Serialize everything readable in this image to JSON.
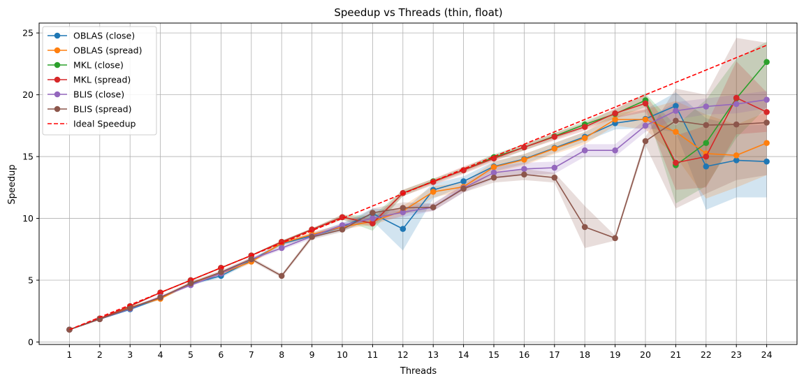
{
  "chart_data": {
    "type": "line",
    "title": "Speedup vs Threads (thin, float)",
    "xlabel": "Threads",
    "ylabel": "Speedup",
    "x": [
      1,
      2,
      3,
      4,
      5,
      6,
      7,
      8,
      9,
      10,
      11,
      12,
      13,
      14,
      15,
      16,
      17,
      18,
      19,
      20,
      21,
      22,
      23,
      24
    ],
    "x_ticks": [
      "1",
      "2",
      "3",
      "4",
      "5",
      "6",
      "7",
      "8",
      "9",
      "10",
      "11",
      "12",
      "13",
      "14",
      "15",
      "16",
      "17",
      "18",
      "19",
      "20",
      "21",
      "22",
      "23",
      "24"
    ],
    "y_ticks": [
      0,
      5,
      10,
      15,
      20,
      25
    ],
    "y_tick_labels": [
      "0",
      "5",
      "10",
      "15",
      "20",
      "25"
    ],
    "xlim": [
      0,
      25
    ],
    "ylim": [
      -0.2,
      25.8
    ],
    "grid": true,
    "legend_position": "top-left",
    "series": [
      {
        "name": "OBLAS (close)",
        "color": "#1f77b4",
        "values": [
          1.0,
          1.85,
          2.65,
          3.55,
          4.7,
          5.35,
          6.6,
          7.95,
          8.6,
          9.3,
          10.4,
          9.15,
          12.3,
          13.0,
          14.2,
          14.8,
          15.7,
          16.6,
          17.7,
          18.05,
          19.1,
          14.2,
          14.7,
          14.6
        ],
        "lower": [
          1.0,
          1.8,
          2.55,
          3.45,
          4.6,
          5.2,
          6.45,
          7.8,
          8.4,
          9.0,
          9.8,
          7.4,
          11.6,
          12.6,
          13.8,
          14.4,
          15.3,
          16.2,
          17.2,
          17.3,
          17.0,
          10.7,
          11.7,
          11.7
        ],
        "upper": [
          1.0,
          1.9,
          2.75,
          3.65,
          4.8,
          5.5,
          6.75,
          8.1,
          8.8,
          9.6,
          10.8,
          10.6,
          12.8,
          13.4,
          14.6,
          15.2,
          16.1,
          17.0,
          18.2,
          18.8,
          20.2,
          18.1,
          17.5,
          17.6
        ]
      },
      {
        "name": "OBLAS (spread)",
        "color": "#ff7f0e",
        "values": [
          1.0,
          1.85,
          2.8,
          3.5,
          4.75,
          5.55,
          6.5,
          8.0,
          8.7,
          9.3,
          9.75,
          10.6,
          12.15,
          12.55,
          14.15,
          14.75,
          15.65,
          16.5,
          18.0,
          18.0,
          17.0,
          15.25,
          15.1,
          16.1
        ],
        "lower": [
          1.0,
          1.8,
          2.7,
          3.4,
          4.65,
          5.4,
          6.35,
          7.85,
          8.5,
          9.1,
          9.5,
          10.2,
          11.7,
          12.2,
          13.7,
          14.3,
          15.2,
          16.0,
          17.5,
          17.2,
          15.0,
          11.6,
          12.5,
          13.5
        ],
        "upper": [
          1.0,
          1.9,
          2.9,
          3.6,
          4.85,
          5.7,
          6.65,
          8.15,
          8.9,
          9.5,
          10.0,
          11.0,
          12.6,
          12.9,
          14.6,
          15.2,
          16.1,
          17.0,
          18.5,
          18.8,
          19.5,
          18.4,
          17.6,
          18.6
        ]
      },
      {
        "name": "MKL (close)",
        "color": "#2ca02c",
        "values": [
          1.0,
          1.9,
          2.9,
          4.0,
          5.0,
          6.0,
          7.0,
          8.1,
          9.1,
          10.1,
          9.6,
          12.05,
          13.0,
          13.9,
          14.95,
          15.75,
          16.65,
          17.6,
          18.45,
          19.55,
          14.3,
          16.1,
          19.7,
          22.65
        ],
        "lower": [
          1.0,
          1.85,
          2.85,
          3.95,
          4.95,
          5.95,
          6.95,
          8.0,
          9.0,
          9.9,
          9.0,
          11.8,
          12.8,
          13.7,
          14.7,
          15.5,
          16.4,
          17.3,
          18.1,
          19.0,
          11.2,
          12.6,
          16.5,
          19.0
        ],
        "upper": [
          1.0,
          1.95,
          2.95,
          4.05,
          5.05,
          6.05,
          7.05,
          8.2,
          9.2,
          10.3,
          10.2,
          12.3,
          13.2,
          14.1,
          15.2,
          16.0,
          16.9,
          17.9,
          18.8,
          20.1,
          17.5,
          19.6,
          22.9,
          24.3
        ]
      },
      {
        "name": "MKL (spread)",
        "color": "#d62728",
        "values": [
          1.0,
          1.9,
          2.9,
          4.0,
          5.0,
          6.0,
          7.0,
          8.1,
          9.1,
          10.1,
          9.6,
          12.05,
          12.95,
          13.9,
          14.85,
          15.75,
          16.6,
          17.4,
          18.5,
          19.3,
          14.5,
          15.0,
          19.75,
          18.6
        ],
        "lower": [
          1.0,
          1.85,
          2.85,
          3.95,
          4.95,
          5.95,
          6.95,
          8.0,
          9.0,
          9.9,
          9.3,
          11.8,
          12.7,
          13.6,
          14.6,
          15.5,
          16.3,
          17.1,
          18.1,
          18.6,
          12.3,
          12.5,
          16.8,
          17.0
        ],
        "upper": [
          1.0,
          1.95,
          2.95,
          4.05,
          5.05,
          6.05,
          7.05,
          8.2,
          9.2,
          10.3,
          9.9,
          12.3,
          13.2,
          14.2,
          15.1,
          16.0,
          16.9,
          17.7,
          18.9,
          20.0,
          16.7,
          17.5,
          22.7,
          20.2
        ]
      },
      {
        "name": "BLIS (close)",
        "color": "#9467bd",
        "values": [
          1.0,
          1.85,
          2.7,
          3.65,
          4.6,
          5.55,
          6.7,
          7.6,
          8.55,
          9.45,
          10.0,
          10.5,
          10.9,
          12.45,
          13.7,
          14.0,
          14.1,
          15.5,
          15.5,
          17.5,
          18.7,
          19.05,
          19.25,
          19.6
        ],
        "lower": [
          1.0,
          1.8,
          2.6,
          3.55,
          4.5,
          5.4,
          6.55,
          7.45,
          8.35,
          9.25,
          9.7,
          10.1,
          10.6,
          12.1,
          13.2,
          13.5,
          13.6,
          15.0,
          15.0,
          17.0,
          18.0,
          18.4,
          18.5,
          18.9
        ],
        "upper": [
          1.0,
          1.9,
          2.8,
          3.75,
          4.7,
          5.7,
          6.85,
          7.75,
          8.75,
          9.65,
          10.3,
          10.9,
          11.2,
          12.8,
          14.2,
          14.5,
          14.6,
          16.0,
          16.0,
          18.0,
          19.4,
          19.7,
          20.0,
          20.3
        ]
      },
      {
        "name": "BLIS (spread)",
        "color": "#8c564b",
        "values": [
          1.0,
          1.85,
          2.75,
          3.6,
          4.75,
          5.65,
          6.7,
          5.35,
          8.5,
          9.1,
          10.45,
          10.85,
          10.9,
          12.4,
          13.3,
          13.55,
          13.3,
          9.3,
          8.4,
          16.25,
          17.9,
          17.55,
          17.6,
          17.75
        ],
        "lower": [
          1.0,
          1.8,
          2.65,
          3.5,
          4.6,
          5.5,
          6.55,
          5.2,
          8.3,
          8.9,
          10.1,
          10.4,
          10.6,
          12.1,
          12.9,
          13.1,
          12.9,
          7.6,
          8.2,
          15.9,
          10.8,
          12.0,
          13.1,
          13.5
        ],
        "upper": [
          1.0,
          1.9,
          2.85,
          3.7,
          4.9,
          5.8,
          6.85,
          5.5,
          8.7,
          9.3,
          10.8,
          11.3,
          11.2,
          12.7,
          13.7,
          14.0,
          13.7,
          11.0,
          8.6,
          16.6,
          20.5,
          20.0,
          24.6,
          24.2
        ]
      },
      {
        "name": "Ideal Speedup",
        "color": "#ff0000",
        "dashed": true,
        "values": [
          1,
          2,
          3,
          4,
          5,
          6,
          7,
          8,
          9,
          10,
          11,
          12,
          13,
          14,
          15,
          16,
          17,
          18,
          19,
          20,
          21,
          22,
          23,
          24
        ]
      }
    ]
  }
}
